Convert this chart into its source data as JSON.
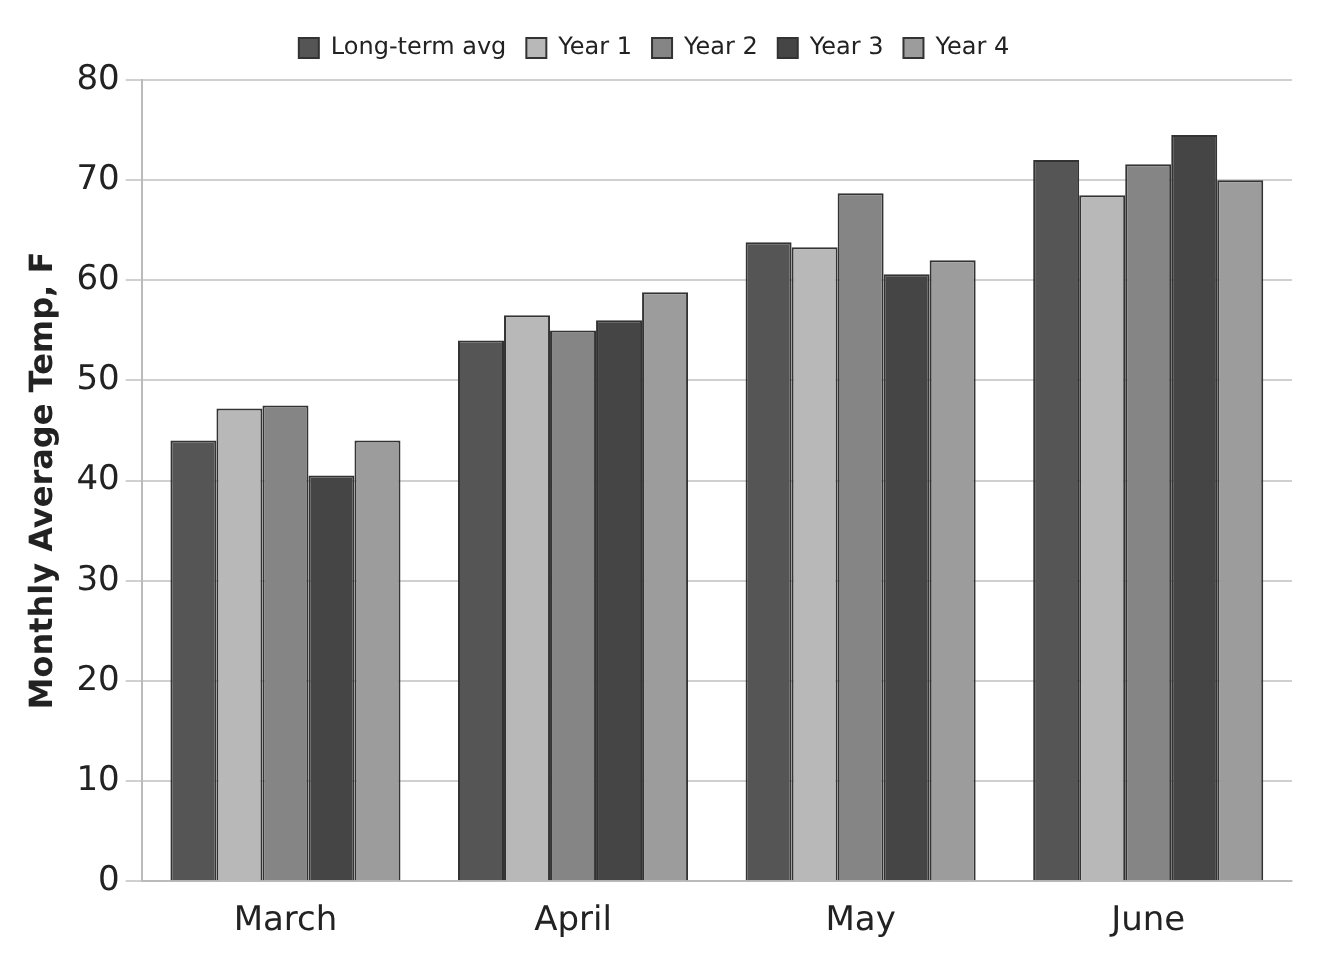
{
  "chart_data": {
    "type": "bar",
    "ylabel": "Monthly Average Temp, F",
    "categories": [
      "March",
      "April",
      "May",
      "June"
    ],
    "series": [
      {
        "name": "Long-term avg",
        "color": "#555555",
        "values": [
          44,
          54,
          63.8,
          72
        ]
      },
      {
        "name": "Year 1",
        "color": "#b8b8b8",
        "values": [
          47.2,
          56.5,
          63.3,
          68.5
        ]
      },
      {
        "name": "Year 2",
        "color": "#858585",
        "values": [
          47.5,
          55,
          68.7,
          71.6
        ]
      },
      {
        "name": "Year 3",
        "color": "#454545",
        "values": [
          40.5,
          56,
          60.6,
          74.5
        ]
      },
      {
        "name": "Year 4",
        "color": "#9c9c9c",
        "values": [
          44,
          58.8,
          62,
          70
        ]
      }
    ],
    "ylim": [
      0,
      80
    ],
    "yticks": [
      0,
      10,
      20,
      30,
      40,
      50,
      60,
      70,
      80
    ],
    "grid": "y",
    "legend": "top"
  }
}
